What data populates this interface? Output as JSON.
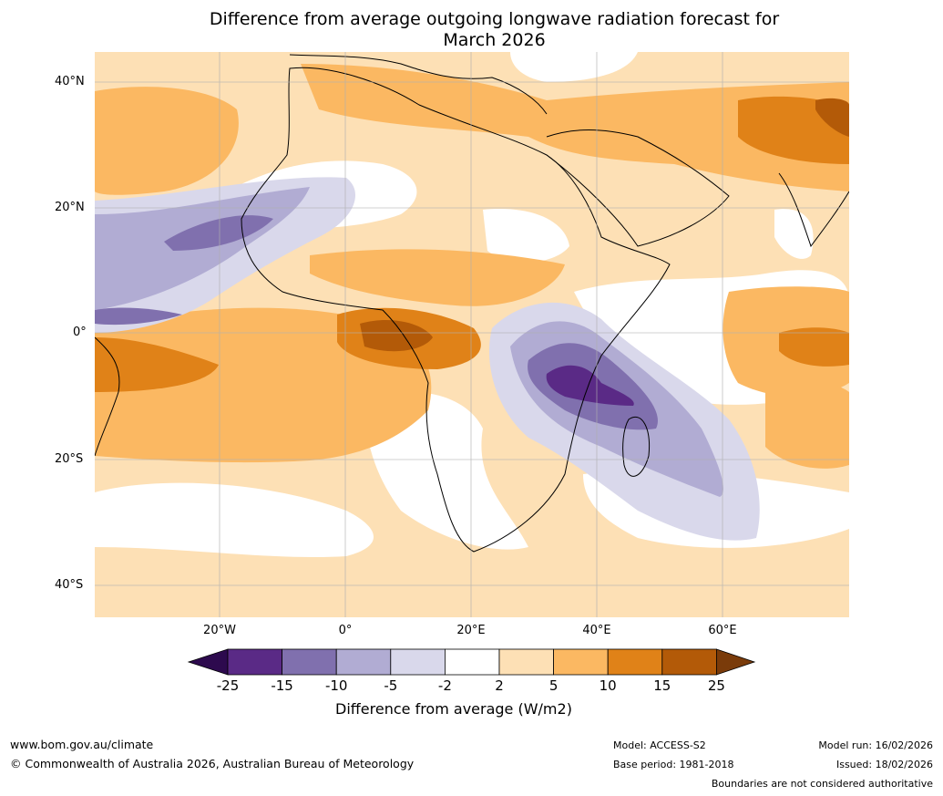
{
  "title_line1": "Difference from average outgoing longwave radiation forecast for",
  "title_line2": "March 2026",
  "lat_labels": [
    "40°N",
    "20°N",
    "0°",
    "20°S",
    "40°S"
  ],
  "lon_labels": [
    "20°W",
    "0°",
    "20°E",
    "40°E",
    "60°E"
  ],
  "colorbar": {
    "title": "Difference from average (W/m2)",
    "ticks": [
      "-25",
      "-15",
      "-10",
      "-5",
      "-2",
      "2",
      "5",
      "10",
      "15",
      "25"
    ],
    "colors": {
      "lt_-25": "#2d0a4e",
      "n25_15": "#5a2a86",
      "n15_10": "#8070ae",
      "n10_5": "#b1acd3",
      "n5_2": "#d9d8eb",
      "n2_2": "#ffffff",
      "p2_5": "#fde0b5",
      "p5_10": "#fbb862",
      "p10_15": "#e08218",
      "p15_25": "#b35a08",
      "gt_25": "#7a3b0a"
    }
  },
  "footer": {
    "url": "www.bom.gov.au/climate",
    "copyright": "© Commonwealth of Australia 2026, Australian Bureau of Meteorology",
    "model": "Model: ACCESS-S2",
    "base_period": "Base period: 1981-2018",
    "model_run": "Model run: 16/02/2026",
    "issued": "Issued: 18/02/2026",
    "disclaimer": "Boundaries are not considered authoritative"
  }
}
